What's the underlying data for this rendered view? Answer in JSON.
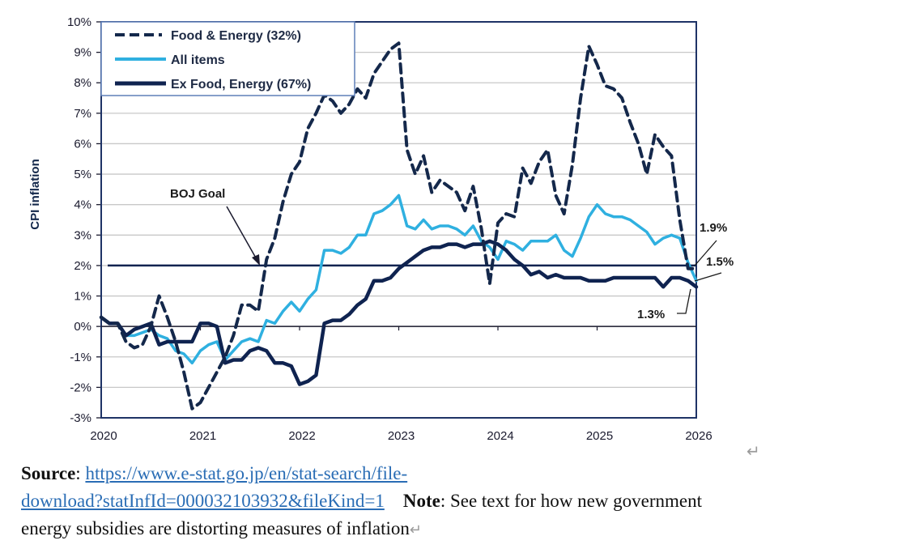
{
  "chart_data": {
    "type": "line",
    "title": "",
    "ylabel": "CPI inflation",
    "xlabel": "",
    "ylim": [
      -3,
      10
    ],
    "xlim": [
      2020,
      2026
    ],
    "grid": true,
    "legend_position": "top-left",
    "y_ticks": [
      "-3%",
      "-2%",
      "-1%",
      "0%",
      "1%",
      "2%",
      "3%",
      "4%",
      "5%",
      "6%",
      "7%",
      "8%",
      "9%",
      "10%"
    ],
    "y_tick_values": [
      -3,
      -2,
      -1,
      0,
      1,
      2,
      3,
      4,
      5,
      6,
      7,
      8,
      9,
      10
    ],
    "x_ticks": [
      "2020",
      "2021",
      "2022",
      "2023",
      "2024",
      "2025",
      "2026"
    ],
    "x_tick_values": [
      2020,
      2021,
      2022,
      2023,
      2024,
      2025,
      2026
    ],
    "x_start": "2020-01",
    "x_step": "monthly",
    "series": [
      {
        "name": "Food & Energy (32%)",
        "style": "dashed",
        "color": "#14284b",
        "values": [
          0.3,
          0.1,
          0.1,
          -0.5,
          -0.7,
          -0.6,
          0.0,
          1.0,
          0.3,
          -0.5,
          -1.5,
          -2.7,
          -2.5,
          -2.0,
          -1.5,
          -1.0,
          -0.3,
          0.7,
          0.7,
          0.5,
          2.2,
          2.9,
          4.1,
          5.0,
          5.4,
          6.5,
          7.0,
          7.6,
          7.4,
          7.0,
          7.3,
          7.8,
          7.5,
          8.3,
          8.7,
          9.1,
          9.3,
          5.8,
          5.0,
          5.6,
          4.4,
          4.8,
          4.6,
          4.4,
          3.8,
          4.6,
          3.2,
          1.4,
          3.4,
          3.7,
          3.6,
          5.2,
          4.7,
          5.4,
          5.8,
          4.3,
          3.7,
          5.3,
          7.5,
          9.2,
          8.6,
          7.9,
          7.8,
          7.5,
          6.7,
          6.0,
          5.0,
          6.3,
          5.9,
          5.6,
          3.5,
          1.9,
          1.9
        ]
      },
      {
        "name": "All items",
        "style": "solid",
        "color": "#2fb0e0",
        "values": [
          0.3,
          0.1,
          0.1,
          -0.3,
          -0.3,
          -0.2,
          -0.1,
          -0.3,
          -0.4,
          -0.8,
          -0.9,
          -1.2,
          -0.8,
          -0.6,
          -0.5,
          -1.1,
          -0.8,
          -0.5,
          -0.4,
          -0.5,
          0.2,
          0.1,
          0.5,
          0.8,
          0.5,
          0.9,
          1.2,
          2.5,
          2.5,
          2.4,
          2.6,
          3.0,
          3.0,
          3.7,
          3.8,
          4.0,
          4.3,
          3.3,
          3.2,
          3.5,
          3.2,
          3.3,
          3.3,
          3.2,
          3.0,
          3.3,
          2.8,
          2.6,
          2.2,
          2.8,
          2.7,
          2.5,
          2.8,
          2.8,
          2.8,
          3.0,
          2.5,
          2.3,
          2.9,
          3.6,
          4.0,
          3.7,
          3.6,
          3.6,
          3.5,
          3.3,
          3.1,
          2.7,
          2.9,
          3.0,
          2.9,
          2.1,
          1.5
        ]
      },
      {
        "name": "Ex Food, Energy (67%)",
        "style": "solid-thick",
        "color": "#0f2350",
        "values": [
          0.3,
          0.1,
          0.1,
          -0.3,
          -0.1,
          0.0,
          0.1,
          -0.6,
          -0.5,
          -0.5,
          -0.5,
          -0.5,
          0.1,
          0.1,
          0.0,
          -1.2,
          -1.1,
          -1.1,
          -0.8,
          -0.7,
          -0.8,
          -1.2,
          -1.2,
          -1.3,
          -1.9,
          -1.8,
          -1.6,
          0.1,
          0.2,
          0.2,
          0.4,
          0.7,
          0.9,
          1.5,
          1.5,
          1.6,
          1.9,
          2.1,
          2.3,
          2.5,
          2.6,
          2.6,
          2.7,
          2.7,
          2.6,
          2.7,
          2.7,
          2.8,
          2.7,
          2.5,
          2.2,
          2.0,
          1.7,
          1.8,
          1.6,
          1.7,
          1.6,
          1.6,
          1.6,
          1.5,
          1.5,
          1.5,
          1.6,
          1.6,
          1.6,
          1.6,
          1.6,
          1.6,
          1.3,
          1.6,
          1.6,
          1.5,
          1.3
        ]
      }
    ],
    "reference_lines": [
      {
        "name": "BOJ Goal",
        "value": 2,
        "color": "#0f2350"
      }
    ],
    "annotations": [
      {
        "text": "BOJ Goal",
        "target": "BOJ Goal line"
      },
      {
        "text": "1.9%",
        "target": "Food & Energy (32%) latest"
      },
      {
        "text": "1.5%",
        "target": "All items latest"
      },
      {
        "text": "1.3%",
        "target": "Ex Food, Energy (67%) latest"
      }
    ]
  },
  "caption": {
    "source_label": "Source",
    "source_sep": ": ",
    "source_url_line1": "https://www.e-stat.go.jp/en/stat-search/file-",
    "source_url_line2": "download?statInfId=000032103932&fileKind=1",
    "note_label": "Note",
    "note_sep": ": ",
    "note_text_line1": "See text for how  new government",
    "note_text_line2": "energy subsidies are distorting measures of inflation",
    "para_mark": "↵"
  }
}
